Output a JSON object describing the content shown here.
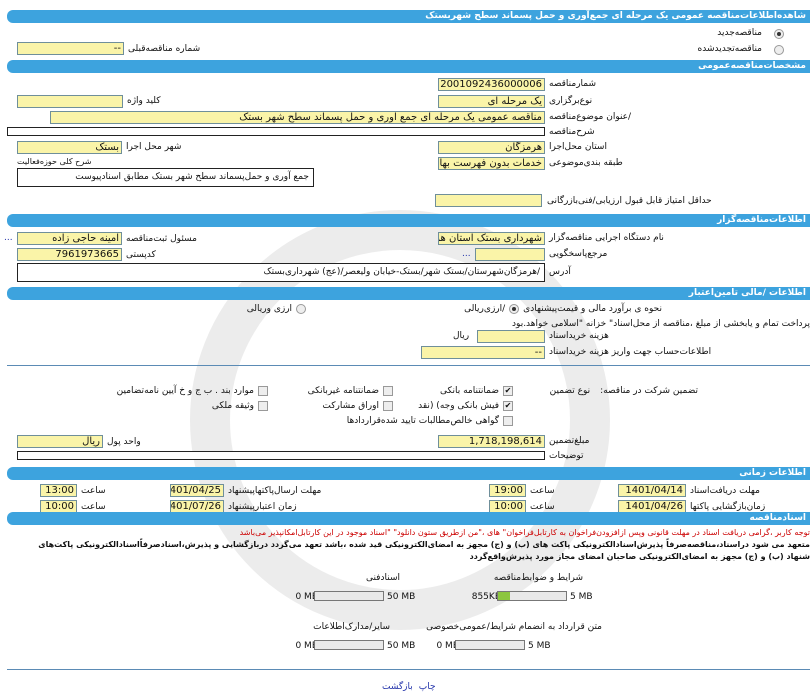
{
  "title": "شاهده‌اطلاعات‌مناقصه عمومی یک مرحله ای جمع‌آوری و حمل پسماند سطح شهربستک",
  "tender_kind": {
    "new": "مناقصه‌جدید",
    "renewed": "مناقصه‌تجدیدشده",
    "selected": "new"
  },
  "previous": {
    "label": "شماره مناقصه‌قبلی",
    "value": "--"
  },
  "general": {
    "header": "مشخصات‌مناقصه‌عمومی",
    "number_label": "شمارمناقصه",
    "number": "2001092436000006",
    "type_label": "نوع‌برگزاری",
    "type": "یک مرحله ای",
    "keyword_label": "کلید واژه",
    "keyword": "",
    "subject_label": "/عنوان موضوع‌مناقصه",
    "subject": "مناقصه عمومی یک مرحله ای جمع آوری و حمل پسماند سطح شهر بستک",
    "desc_label": "شرح‌مناقصه",
    "desc": "",
    "province_label": "استان محل‌اجرا",
    "province": "هرمزگان",
    "city_label": "شهر محل اجرا",
    "city": "بستک",
    "category_label": "طبقه بندی‌موضوعی",
    "category": "خدمات بدون فهرست بها",
    "activity_label": "شرح کلی حوزه‌فعالیت",
    "activity": "جمع آوری و حمل‌پسماند سطح شهر بستک مطابق اسنادپیوست",
    "min_score_label": "حداقل امتیاز قابل قبول ارزیابی/فنی‌بازرگانی",
    "min_score": ""
  },
  "organizer": {
    "header": "اطلاعات‌مناقصه‌گزار",
    "org_label": "نام دستگاه اجرایی مناقصه‌گزار",
    "org": "شهرداری بستک استان هر",
    "responsible_label": "مسئول ثبت‌مناقصه",
    "responsible": "امینه حاجی زاده",
    "more": "...",
    "ref_label": "مرجع‌پاسخگویی",
    "ref": "",
    "ref_more": "...",
    "postal_label": "کدپستی",
    "postal": "7961973665",
    "address_label": "آدرس",
    "address": "/هرمزگان‌شهرستان/بستک شهر/بستک-خیابان ولیعصر/(عج) شهرداری‌بستک"
  },
  "finance": {
    "header": "اطلاعات /مالی تامین‌اعتبار",
    "estimate_label": "نحوه ی برآورد مالی و قیمت‌پیشنهادی",
    "opt_rial": "/ارزی‌ریالی",
    "opt_fx": "ارزی وریالی",
    "payment_text": "پرداخت تمام و یابخشی از مبلغ ،مناقصه از محل‌اسناد\" خزانه \"اسلامی خواهد.بود",
    "fee_label": "هزینه خریداسناد",
    "fee": "",
    "fee_unit": "ریال",
    "account_label": "اطلاعات‌حساب جهت واریز هزینه خریداسناد",
    "account": "--"
  },
  "guarantee": {
    "label": "تضمین شرکت در مناقصه:",
    "type_label": "نوع تضمین",
    "options": [
      {
        "label": "ضمانتنامه بانکی",
        "checked": true
      },
      {
        "label": "ضمانتنامه غیربانکی",
        "checked": false
      },
      {
        "label": "موارد بند . ب ج و خ آیین نامه‌تضامین",
        "checked": false
      },
      {
        "label": "فیش بانکی وجه) (نقد",
        "checked": true
      },
      {
        "label": "اوراق مشارکت",
        "checked": false
      },
      {
        "label": "وثیقه ملکی",
        "checked": false
      },
      {
        "label": "گواهی خالص‌مطالبات تایید شده‌قراردادها",
        "checked": false
      }
    ],
    "amount_label": "مبلغ‌تضمین",
    "amount": "1,718,198,614",
    "currency_label": "واحد پول",
    "currency": "ریال",
    "notes_label": "توضیحات",
    "notes": ""
  },
  "timing": {
    "header": "اطلاعات زمانی",
    "doc_deadline_label": "مهلت دریافت‌اسناد",
    "doc_deadline": "1401/04/14",
    "doc_time": "19:00",
    "submit_label": "مهلت ارسال‌پاکتهاپیشنهاد",
    "submit": "1401/04/25",
    "submit_time": "13:00",
    "open_label": "زمان‌بازگشایی پاکتها",
    "open": "1401/04/26",
    "open_time": "10:00",
    "validity_label": "زمان اعتبارپیشنهاد",
    "validity": "1401/07/26",
    "validity_time": "10:00",
    "time_label": "ساعت"
  },
  "documents": {
    "header": "اسنادمناقصه",
    "notice": "توجه کاربر ،گرامی دریافت اسناد در مهلت قانونی وپس ازافزودن‌فراخوان به کارتابل‌فراخوان\" های ،\"من ازطریق ستون دانلود\" \"اسناد موجود در این کارتابل‌امکانپذیر می‌باشد",
    "commit1": "متعهد می شود دراسناد،مناقصه‌صرفاً پذیرش‌اسنادالکترونیکی پاکت های (ب) و (ج) مجهز به امضای‌الکترونیکی قید شده ،باشد تعهد می‌گردد دربازگشایی و پذیرش،اسنادصرفاً‌اسنادالکترونیکی پاکت‌های",
    "commit2": "شنهاد (ب) و (ج) مجهز به امضای‌الکترونیکی صاحبان امضای مجاز مورد پذیرش‌واقع‌گردد",
    "files": [
      {
        "label": "شرایط و ضوابط‌مناقصه",
        "used": "855KB",
        "max": "5 MB",
        "fill": 0.17
      },
      {
        "label": "اسنادفنی",
        "used": "0 MB",
        "max": "50 MB",
        "fill": 0
      },
      {
        "label": "متن قرارداد به انضمام شرایط/عمومی‌خصوصی",
        "used": "0 MB",
        "max": "5 MB",
        "fill": 0
      },
      {
        "label": "سایر/مدارک‌اطلاعات",
        "used": "0 MB",
        "max": "50 MB",
        "fill": 0
      }
    ]
  },
  "footer": {
    "print": "چاپ",
    "back": "بازگشت"
  },
  "colors": {
    "header": "#3da3de",
    "field": "#faf4a8",
    "notice": "#cc0000"
  }
}
